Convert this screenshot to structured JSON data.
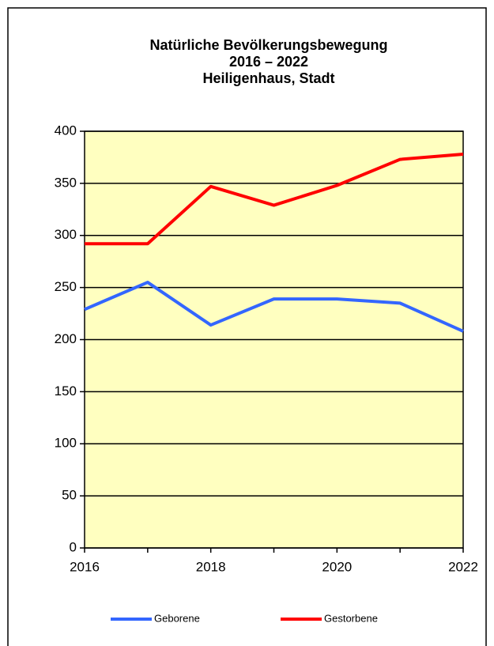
{
  "chart_data": {
    "type": "line",
    "title": [
      "Natürliche Bevölkerungsbewegung",
      "2016 – 2022",
      "Heiligenhaus, Stadt"
    ],
    "x": [
      2016,
      2017,
      2018,
      2019,
      2020,
      2021,
      2022
    ],
    "series": [
      {
        "name": "Geborene",
        "color": "#3366ff",
        "values": [
          229,
          255,
          214,
          239,
          239,
          235,
          208
        ]
      },
      {
        "name": "Gestorbene",
        "color": "#ff0000",
        "values": [
          292,
          292,
          347,
          329,
          348,
          373,
          378
        ]
      }
    ],
    "xlim": [
      2016,
      2022
    ],
    "xticks": [
      2016,
      2018,
      2020,
      2022
    ],
    "ylim": [
      0,
      400
    ],
    "yticks": [
      0,
      50,
      100,
      150,
      200,
      250,
      300,
      350,
      400
    ],
    "grid": true,
    "plot_background": "#ffffc0",
    "legend": "bottom"
  }
}
